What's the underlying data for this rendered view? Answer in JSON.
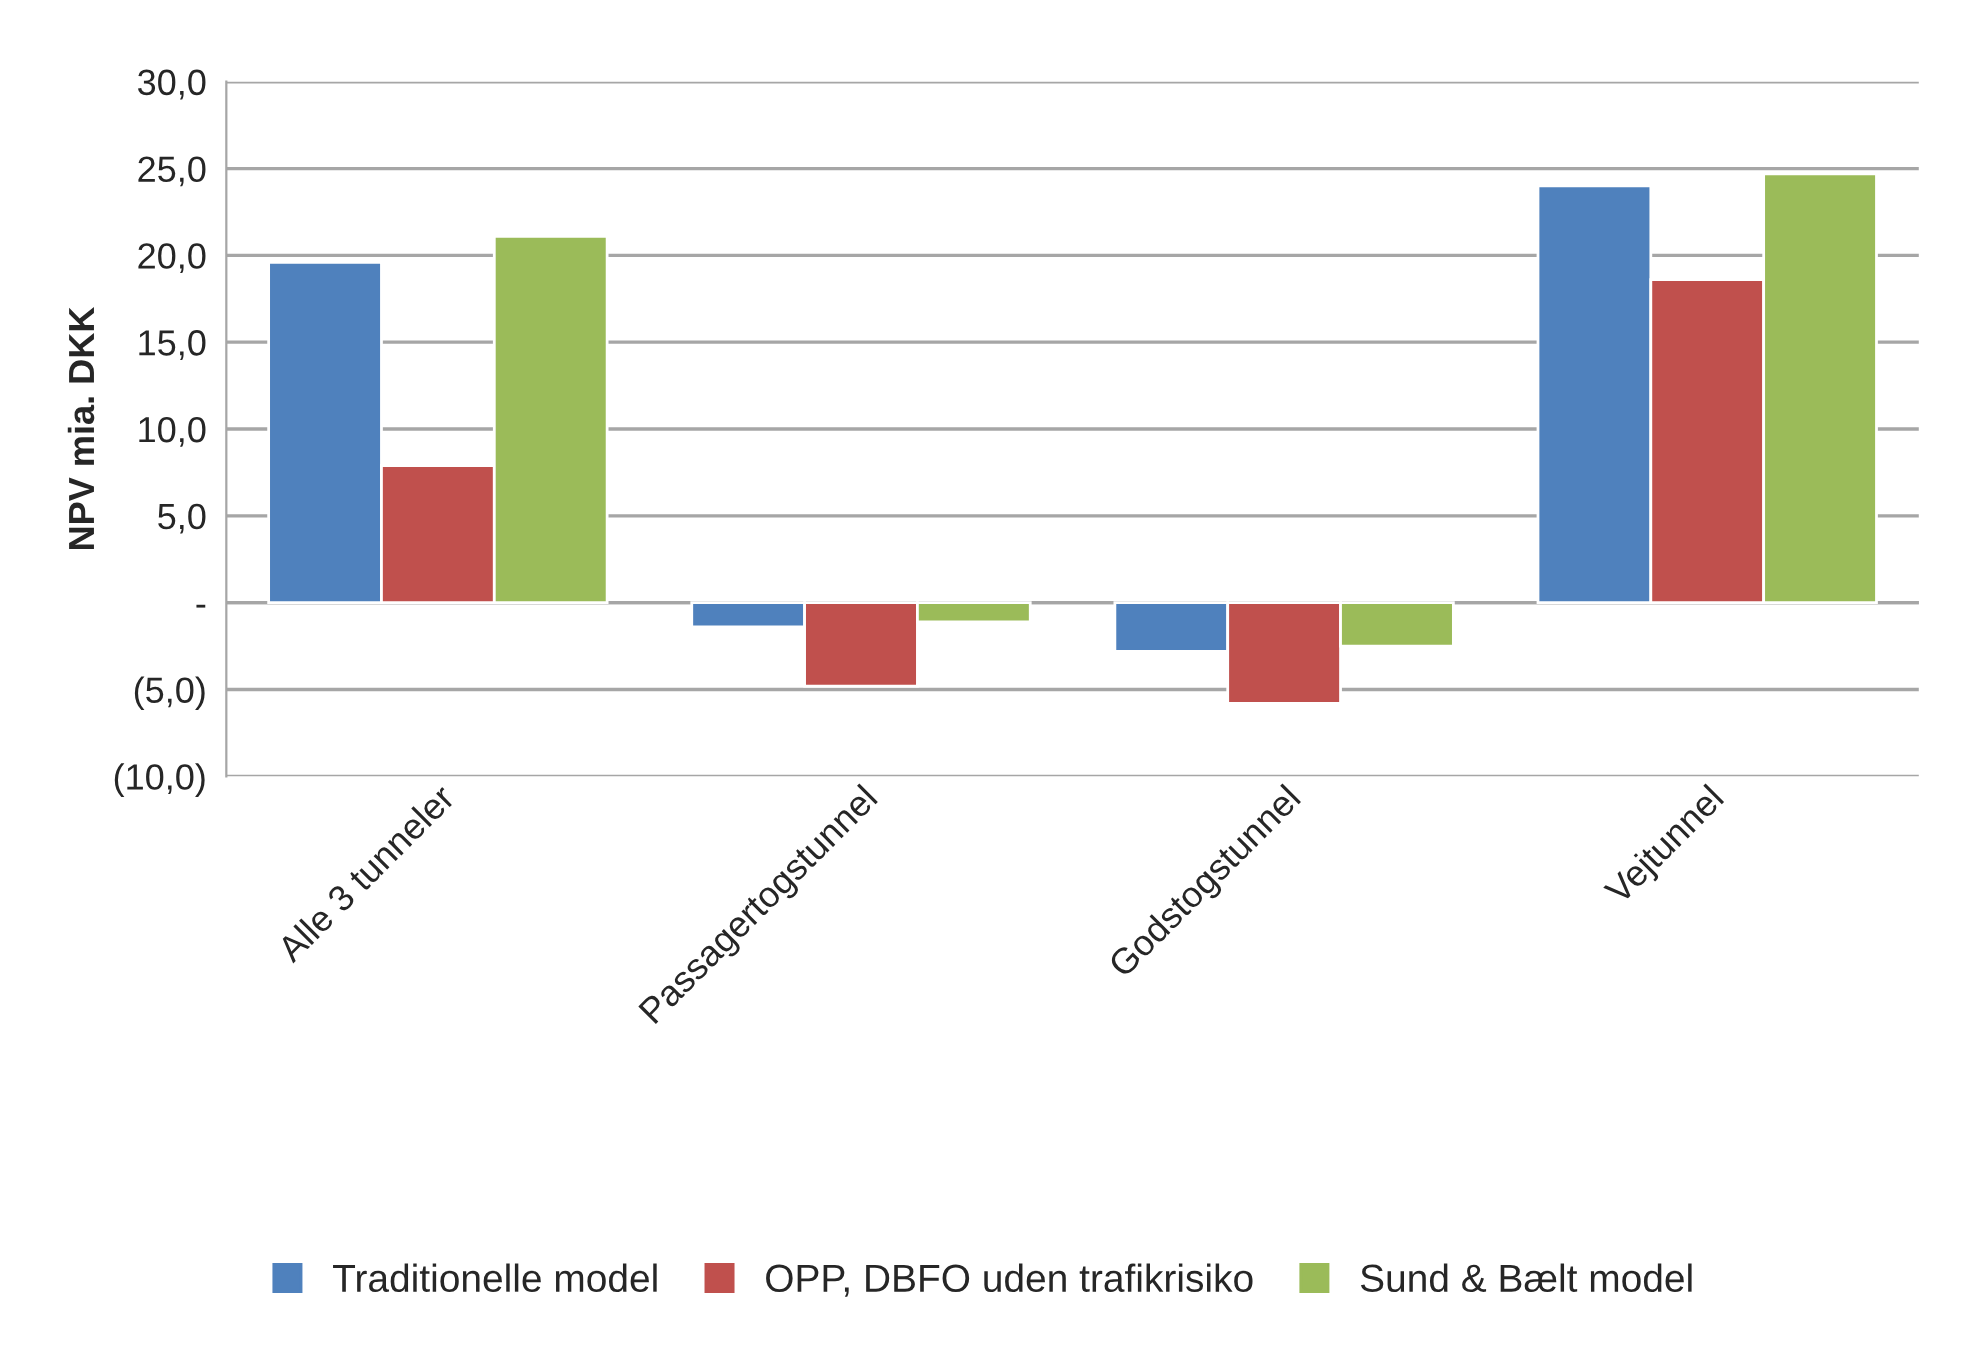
{
  "chart_data": {
    "type": "bar",
    "ylabel": "NPV mia. DKK",
    "categories": [
      "Alle 3 tunneler",
      "Passagertogstunnel",
      "Godstogstunnel",
      "Vejtunnel"
    ],
    "series": [
      {
        "name": "Traditionelle model",
        "color": "#4f81bd",
        "values": [
          19.6,
          -1.4,
          -2.8,
          24.0
        ]
      },
      {
        "name": "OPP, DBFO uden trafikrisiko",
        "color": "#c0504d",
        "values": [
          7.9,
          -4.8,
          -5.8,
          18.6
        ]
      },
      {
        "name": "Sund & Bælt model",
        "color": "#9bbb59",
        "values": [
          21.1,
          -1.1,
          -2.5,
          24.7
        ]
      }
    ],
    "ylim": [
      -10,
      30
    ],
    "yticks": [
      {
        "value": -10,
        "label": "(10,0)"
      },
      {
        "value": -5,
        "label": "(5,0)"
      },
      {
        "value": 0,
        "label": "-"
      },
      {
        "value": 5,
        "label": "5,0"
      },
      {
        "value": 10,
        "label": "10,0"
      },
      {
        "value": 15,
        "label": "15,0"
      },
      {
        "value": 20,
        "label": "20,0"
      },
      {
        "value": 25,
        "label": "25,0"
      },
      {
        "value": 30,
        "label": "30,0"
      }
    ],
    "grid": "y",
    "legend": "bottom"
  }
}
